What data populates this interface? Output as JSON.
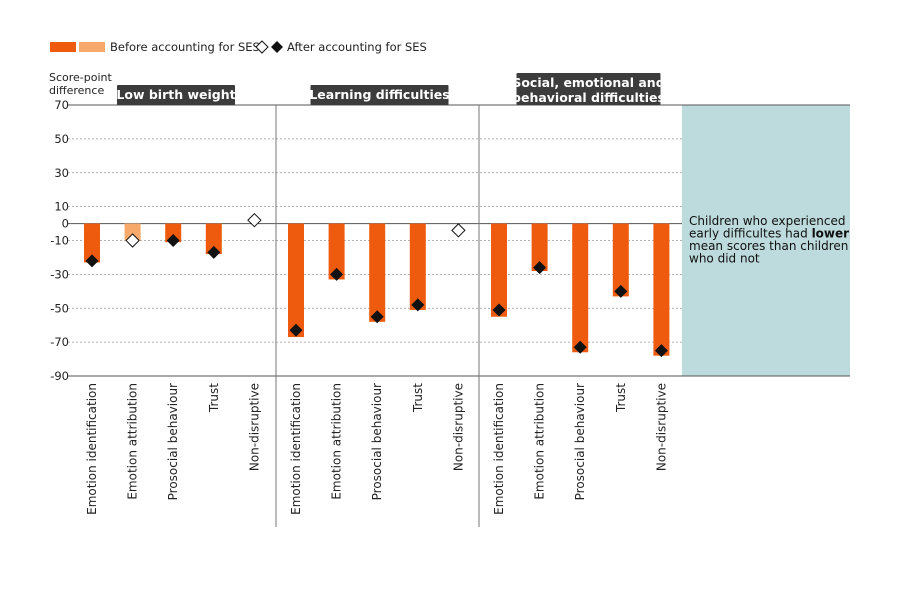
{
  "chart_data": {
    "type": "bar",
    "ylabel": "Score-point difference",
    "ylim": [
      -90,
      70
    ],
    "yticks": [
      70,
      50,
      30,
      10,
      0,
      -10,
      -30,
      -50,
      -70,
      -90
    ],
    "grid": true,
    "legend_position": "top-left",
    "legend": {
      "before": "Before accounting for SES",
      "after": "After accounting for SES"
    },
    "series_names": [
      "Before accounting for SES",
      "After accounting for SES"
    ],
    "colors": {
      "significant_bar": "#ee5b0f",
      "nonsignificant_bar": "#f6a96a",
      "marker": "#111111",
      "panel_title_bg": "#3c3c3c",
      "note_bg": "#bddadd"
    },
    "groups": [
      {
        "title": "Low birth weight",
        "categories": [
          "Emotion identification",
          "Emotion attribution",
          "Prosocial behaviour",
          "Trust",
          "Non-disruptive"
        ],
        "before": [
          -23,
          -10,
          -11,
          -18,
          null
        ],
        "before_significant": [
          true,
          false,
          true,
          true,
          true
        ],
        "after": [
          -22,
          -10,
          -10,
          -17,
          2
        ],
        "after_significant": [
          true,
          false,
          true,
          true,
          false
        ]
      },
      {
        "title": "Learning difficulties",
        "categories": [
          "Emotion identification",
          "Emotion attribution",
          "Prosocial behaviour",
          "Trust",
          "Non-disruptive"
        ],
        "before": [
          -67,
          -33,
          -58,
          -51,
          null
        ],
        "before_significant": [
          true,
          true,
          true,
          true,
          true
        ],
        "after": [
          -63,
          -30,
          -55,
          -48,
          -4
        ],
        "after_significant": [
          true,
          true,
          true,
          true,
          false
        ]
      },
      {
        "title": "Social, emotional and behavioral difficulties",
        "title_lines": [
          "Social, emotional and",
          "behavioral difficulties"
        ],
        "categories": [
          "Emotion identification",
          "Emotion attribution",
          "Prosocial behaviour",
          "Trust",
          "Non-disruptive"
        ],
        "before": [
          -55,
          -28,
          -76,
          -43,
          -78
        ],
        "before_significant": [
          true,
          true,
          true,
          true,
          true
        ],
        "after": [
          -51,
          -26,
          -73,
          -40,
          -75
        ],
        "after_significant": [
          true,
          true,
          true,
          true,
          true
        ]
      }
    ],
    "annotation": {
      "lines": [
        [
          {
            "text": "Children who experienced",
            "bold": false
          }
        ],
        [
          {
            "text": "early difficultes had ",
            "bold": false
          },
          {
            "text": "lower",
            "bold": true
          }
        ],
        [
          {
            "text": "mean scores than children",
            "bold": false
          }
        ],
        [
          {
            "text": "who did not",
            "bold": false
          }
        ]
      ]
    }
  }
}
